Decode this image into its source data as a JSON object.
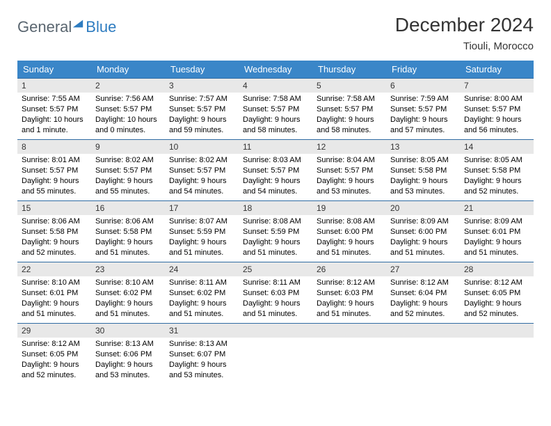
{
  "logo": {
    "general": "General",
    "blue": "Blue"
  },
  "title": "December 2024",
  "location": "Tiouli, Morocco",
  "weekdays": [
    "Sunday",
    "Monday",
    "Tuesday",
    "Wednesday",
    "Thursday",
    "Friday",
    "Saturday"
  ],
  "colors": {
    "header_bg": "#3a86c8",
    "header_text": "#ffffff",
    "day_number_bg": "#e8e8e8",
    "cell_border": "#2e6ba3",
    "logo_gray": "#5a6670",
    "logo_blue": "#2e7cc0"
  },
  "days": [
    {
      "n": "1",
      "sunrise": "7:55 AM",
      "sunset": "5:57 PM",
      "daylight": "10 hours and 1 minute."
    },
    {
      "n": "2",
      "sunrise": "7:56 AM",
      "sunset": "5:57 PM",
      "daylight": "10 hours and 0 minutes."
    },
    {
      "n": "3",
      "sunrise": "7:57 AM",
      "sunset": "5:57 PM",
      "daylight": "9 hours and 59 minutes."
    },
    {
      "n": "4",
      "sunrise": "7:58 AM",
      "sunset": "5:57 PM",
      "daylight": "9 hours and 58 minutes."
    },
    {
      "n": "5",
      "sunrise": "7:58 AM",
      "sunset": "5:57 PM",
      "daylight": "9 hours and 58 minutes."
    },
    {
      "n": "6",
      "sunrise": "7:59 AM",
      "sunset": "5:57 PM",
      "daylight": "9 hours and 57 minutes."
    },
    {
      "n": "7",
      "sunrise": "8:00 AM",
      "sunset": "5:57 PM",
      "daylight": "9 hours and 56 minutes."
    },
    {
      "n": "8",
      "sunrise": "8:01 AM",
      "sunset": "5:57 PM",
      "daylight": "9 hours and 55 minutes."
    },
    {
      "n": "9",
      "sunrise": "8:02 AM",
      "sunset": "5:57 PM",
      "daylight": "9 hours and 55 minutes."
    },
    {
      "n": "10",
      "sunrise": "8:02 AM",
      "sunset": "5:57 PM",
      "daylight": "9 hours and 54 minutes."
    },
    {
      "n": "11",
      "sunrise": "8:03 AM",
      "sunset": "5:57 PM",
      "daylight": "9 hours and 54 minutes."
    },
    {
      "n": "12",
      "sunrise": "8:04 AM",
      "sunset": "5:57 PM",
      "daylight": "9 hours and 53 minutes."
    },
    {
      "n": "13",
      "sunrise": "8:05 AM",
      "sunset": "5:58 PM",
      "daylight": "9 hours and 53 minutes."
    },
    {
      "n": "14",
      "sunrise": "8:05 AM",
      "sunset": "5:58 PM",
      "daylight": "9 hours and 52 minutes."
    },
    {
      "n": "15",
      "sunrise": "8:06 AM",
      "sunset": "5:58 PM",
      "daylight": "9 hours and 52 minutes."
    },
    {
      "n": "16",
      "sunrise": "8:06 AM",
      "sunset": "5:58 PM",
      "daylight": "9 hours and 51 minutes."
    },
    {
      "n": "17",
      "sunrise": "8:07 AM",
      "sunset": "5:59 PM",
      "daylight": "9 hours and 51 minutes."
    },
    {
      "n": "18",
      "sunrise": "8:08 AM",
      "sunset": "5:59 PM",
      "daylight": "9 hours and 51 minutes."
    },
    {
      "n": "19",
      "sunrise": "8:08 AM",
      "sunset": "6:00 PM",
      "daylight": "9 hours and 51 minutes."
    },
    {
      "n": "20",
      "sunrise": "8:09 AM",
      "sunset": "6:00 PM",
      "daylight": "9 hours and 51 minutes."
    },
    {
      "n": "21",
      "sunrise": "8:09 AM",
      "sunset": "6:01 PM",
      "daylight": "9 hours and 51 minutes."
    },
    {
      "n": "22",
      "sunrise": "8:10 AM",
      "sunset": "6:01 PM",
      "daylight": "9 hours and 51 minutes."
    },
    {
      "n": "23",
      "sunrise": "8:10 AM",
      "sunset": "6:02 PM",
      "daylight": "9 hours and 51 minutes."
    },
    {
      "n": "24",
      "sunrise": "8:11 AM",
      "sunset": "6:02 PM",
      "daylight": "9 hours and 51 minutes."
    },
    {
      "n": "25",
      "sunrise": "8:11 AM",
      "sunset": "6:03 PM",
      "daylight": "9 hours and 51 minutes."
    },
    {
      "n": "26",
      "sunrise": "8:12 AM",
      "sunset": "6:03 PM",
      "daylight": "9 hours and 51 minutes."
    },
    {
      "n": "27",
      "sunrise": "8:12 AM",
      "sunset": "6:04 PM",
      "daylight": "9 hours and 52 minutes."
    },
    {
      "n": "28",
      "sunrise": "8:12 AM",
      "sunset": "6:05 PM",
      "daylight": "9 hours and 52 minutes."
    },
    {
      "n": "29",
      "sunrise": "8:12 AM",
      "sunset": "6:05 PM",
      "daylight": "9 hours and 52 minutes."
    },
    {
      "n": "30",
      "sunrise": "8:13 AM",
      "sunset": "6:06 PM",
      "daylight": "9 hours and 53 minutes."
    },
    {
      "n": "31",
      "sunrise": "8:13 AM",
      "sunset": "6:07 PM",
      "daylight": "9 hours and 53 minutes."
    }
  ],
  "labels": {
    "sunrise": "Sunrise: ",
    "sunset": "Sunset: ",
    "daylight": "Daylight: "
  }
}
